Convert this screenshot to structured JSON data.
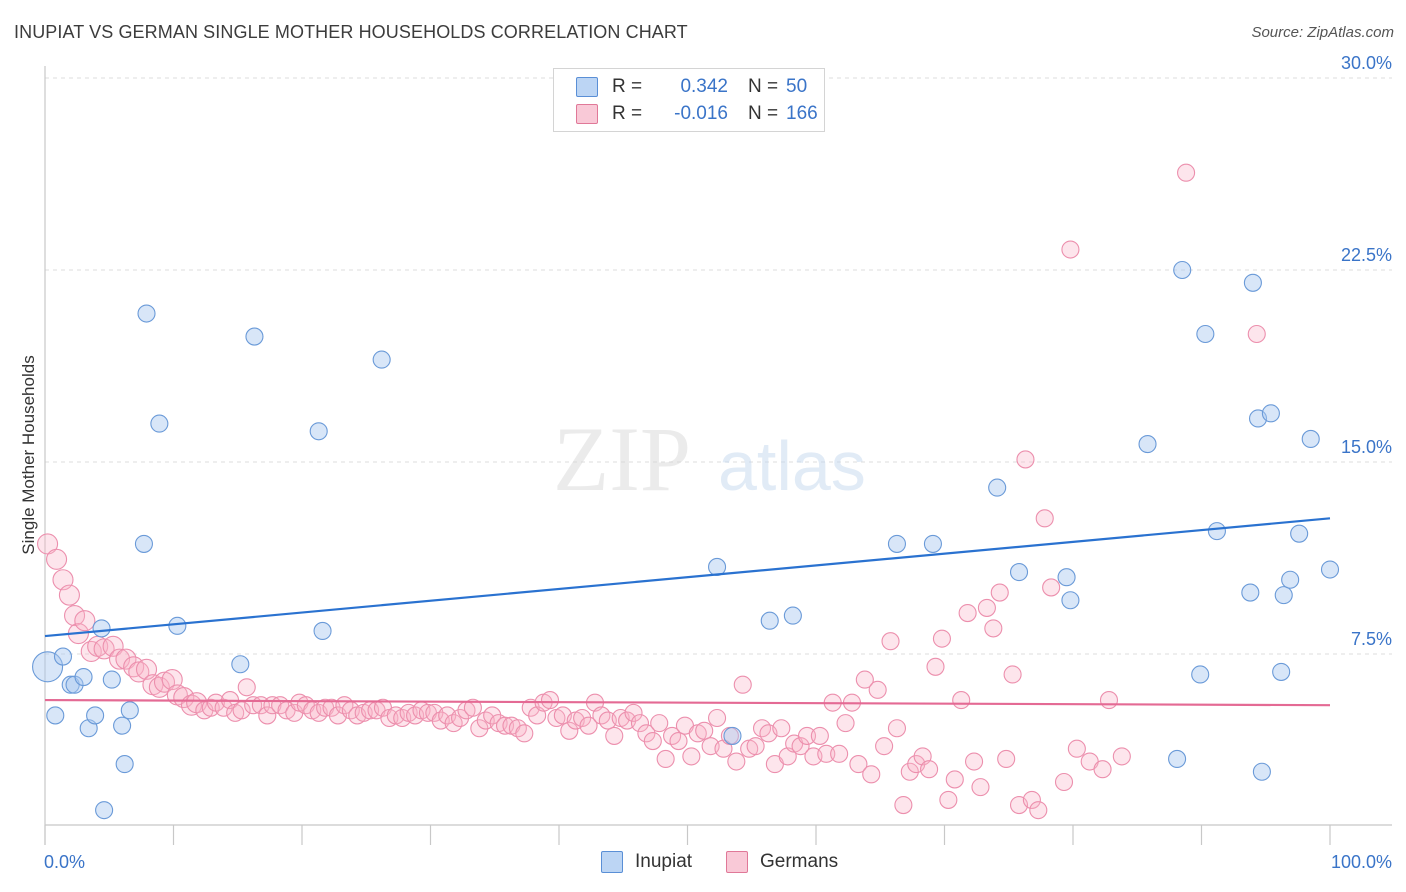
{
  "header": {
    "title": "INUPIAT VS GERMAN SINGLE MOTHER HOUSEHOLDS CORRELATION CHART",
    "source": "Source: ZipAtlas.com"
  },
  "watermark": {
    "zip": "ZIP",
    "atlas": "atlas"
  },
  "legend": {
    "rows": [
      {
        "r_label": "R =",
        "r_value": "0.342",
        "n_label": "N =",
        "n_value": "50",
        "color": "#a8c8f0",
        "border": "#5a8fd6"
      },
      {
        "r_label": "R =",
        "r_value": "-0.016",
        "n_label": "N =",
        "n_value": "166",
        "color": "#f8c0d0",
        "border": "#e07898"
      }
    ],
    "bottom": [
      {
        "label": "Inupiat",
        "color": "#a8c8f0",
        "border": "#5a8fd6"
      },
      {
        "label": "Germans",
        "color": "#f8c0d0",
        "border": "#e07898"
      }
    ]
  },
  "chart_data": {
    "type": "scatter",
    "title": "INUPIAT VS GERMAN SINGLE MOTHER HOUSEHOLDS CORRELATION CHART",
    "xlabel": "",
    "ylabel": "Single Mother Households",
    "xlim": [
      0,
      100
    ],
    "ylim": [
      0,
      31
    ],
    "x_tick_labels": [
      "0.0%",
      "100.0%"
    ],
    "y_ticks": [
      7.5,
      15.0,
      22.5,
      30.0
    ],
    "y_tick_labels": [
      "7.5%",
      "15.0%",
      "22.5%",
      "30.0%"
    ],
    "grid": true,
    "legend_position": "top-center",
    "colors": {
      "inupiat": "#4f8ad8",
      "germans": "#e87aa0",
      "axis_text": "#3a74c8"
    },
    "series": [
      {
        "name": "Inupiat",
        "trend": {
          "x": [
            0,
            100
          ],
          "y": [
            8.2,
            12.8
          ]
        },
        "points": [
          [
            0.2,
            7.0
          ],
          [
            0.8,
            5.1
          ],
          [
            1.4,
            7.4
          ],
          [
            2.0,
            6.3
          ],
          [
            2.3,
            6.3
          ],
          [
            3.0,
            6.6
          ],
          [
            3.4,
            4.6
          ],
          [
            3.9,
            5.1
          ],
          [
            4.4,
            8.5
          ],
          [
            4.6,
            1.4
          ],
          [
            5.2,
            6.5
          ],
          [
            6.0,
            4.7
          ],
          [
            6.2,
            3.2
          ],
          [
            6.6,
            5.3
          ],
          [
            7.7,
            11.8
          ],
          [
            7.9,
            20.8
          ],
          [
            8.9,
            16.5
          ],
          [
            10.3,
            8.6
          ],
          [
            15.2,
            7.1
          ],
          [
            16.3,
            19.9
          ],
          [
            21.3,
            16.2
          ],
          [
            21.6,
            8.4
          ],
          [
            26.2,
            19.0
          ],
          [
            52.3,
            10.9
          ],
          [
            53.5,
            4.3
          ],
          [
            56.4,
            8.8
          ],
          [
            58.2,
            9.0
          ],
          [
            66.3,
            11.8
          ],
          [
            69.1,
            11.8
          ],
          [
            74.1,
            14.0
          ],
          [
            75.8,
            10.7
          ],
          [
            79.5,
            10.5
          ],
          [
            79.8,
            9.6
          ],
          [
            85.8,
            15.7
          ],
          [
            88.1,
            3.4
          ],
          [
            88.5,
            22.5
          ],
          [
            89.9,
            6.7
          ],
          [
            90.3,
            20.0
          ],
          [
            91.2,
            12.3
          ],
          [
            93.8,
            9.9
          ],
          [
            94.0,
            22.0
          ],
          [
            94.4,
            16.7
          ],
          [
            94.7,
            2.9
          ],
          [
            95.4,
            16.9
          ],
          [
            96.2,
            6.8
          ],
          [
            96.4,
            9.8
          ],
          [
            96.9,
            10.4
          ],
          [
            97.6,
            12.2
          ],
          [
            98.5,
            15.9
          ],
          [
            100.0,
            10.8
          ]
        ]
      },
      {
        "name": "Germans",
        "trend": {
          "x": [
            0,
            100
          ],
          "y": [
            5.7,
            5.5
          ]
        },
        "points": [
          [
            0.2,
            11.8
          ],
          [
            0.9,
            11.2
          ],
          [
            1.4,
            10.4
          ],
          [
            1.9,
            9.8
          ],
          [
            2.3,
            9.0
          ],
          [
            2.6,
            8.3
          ],
          [
            3.1,
            8.8
          ],
          [
            3.6,
            7.6
          ],
          [
            4.1,
            7.8
          ],
          [
            4.6,
            7.7
          ],
          [
            5.3,
            7.8
          ],
          [
            5.8,
            7.3
          ],
          [
            6.3,
            7.3
          ],
          [
            6.9,
            7.0
          ],
          [
            7.3,
            6.8
          ],
          [
            7.9,
            6.9
          ],
          [
            8.4,
            6.3
          ],
          [
            8.9,
            6.2
          ],
          [
            9.3,
            6.4
          ],
          [
            9.9,
            6.5
          ],
          [
            10.3,
            5.9
          ],
          [
            10.8,
            5.8
          ],
          [
            11.4,
            5.5
          ],
          [
            11.8,
            5.6
          ],
          [
            12.4,
            5.3
          ],
          [
            12.9,
            5.4
          ],
          [
            13.3,
            5.6
          ],
          [
            13.9,
            5.4
          ],
          [
            14.4,
            5.7
          ],
          [
            14.8,
            5.2
          ],
          [
            15.3,
            5.3
          ],
          [
            15.7,
            6.2
          ],
          [
            16.2,
            5.5
          ],
          [
            16.8,
            5.5
          ],
          [
            17.3,
            5.1
          ],
          [
            17.7,
            5.5
          ],
          [
            18.3,
            5.5
          ],
          [
            18.8,
            5.3
          ],
          [
            19.4,
            5.2
          ],
          [
            19.8,
            5.6
          ],
          [
            20.3,
            5.5
          ],
          [
            20.8,
            5.3
          ],
          [
            21.3,
            5.2
          ],
          [
            21.8,
            5.4
          ],
          [
            22.3,
            5.4
          ],
          [
            22.8,
            5.1
          ],
          [
            23.3,
            5.5
          ],
          [
            23.8,
            5.3
          ],
          [
            24.3,
            5.1
          ],
          [
            24.8,
            5.2
          ],
          [
            25.3,
            5.3
          ],
          [
            25.8,
            5.3
          ],
          [
            26.3,
            5.4
          ],
          [
            26.8,
            5.0
          ],
          [
            27.3,
            5.1
          ],
          [
            27.8,
            5.0
          ],
          [
            28.3,
            5.2
          ],
          [
            28.8,
            5.1
          ],
          [
            29.3,
            5.3
          ],
          [
            29.8,
            5.2
          ],
          [
            30.3,
            5.2
          ],
          [
            30.8,
            4.9
          ],
          [
            31.3,
            5.1
          ],
          [
            31.8,
            4.8
          ],
          [
            32.3,
            5.0
          ],
          [
            32.8,
            5.3
          ],
          [
            33.3,
            5.4
          ],
          [
            33.8,
            4.6
          ],
          [
            34.3,
            4.9
          ],
          [
            34.8,
            5.1
          ],
          [
            35.3,
            4.8
          ],
          [
            35.8,
            4.7
          ],
          [
            36.3,
            4.7
          ],
          [
            36.8,
            4.6
          ],
          [
            37.3,
            4.4
          ],
          [
            37.8,
            5.4
          ],
          [
            38.3,
            5.1
          ],
          [
            38.8,
            5.6
          ],
          [
            39.3,
            5.7
          ],
          [
            39.8,
            5.0
          ],
          [
            40.3,
            5.1
          ],
          [
            40.8,
            4.5
          ],
          [
            41.3,
            4.9
          ],
          [
            41.8,
            5.0
          ],
          [
            42.3,
            4.7
          ],
          [
            42.8,
            5.6
          ],
          [
            43.3,
            5.1
          ],
          [
            43.8,
            4.9
          ],
          [
            44.3,
            4.3
          ],
          [
            44.8,
            5.0
          ],
          [
            45.3,
            4.9
          ],
          [
            45.8,
            5.2
          ],
          [
            46.3,
            4.8
          ],
          [
            46.8,
            4.4
          ],
          [
            47.3,
            4.1
          ],
          [
            47.8,
            4.8
          ],
          [
            48.3,
            3.4
          ],
          [
            48.8,
            4.3
          ],
          [
            49.3,
            4.1
          ],
          [
            49.8,
            4.7
          ],
          [
            50.3,
            3.5
          ],
          [
            50.8,
            4.4
          ],
          [
            51.3,
            4.5
          ],
          [
            51.8,
            3.9
          ],
          [
            52.3,
            5.0
          ],
          [
            52.8,
            3.8
          ],
          [
            53.3,
            4.3
          ],
          [
            53.8,
            3.3
          ],
          [
            54.3,
            6.3
          ],
          [
            54.8,
            3.8
          ],
          [
            55.3,
            3.9
          ],
          [
            55.8,
            4.6
          ],
          [
            56.3,
            4.4
          ],
          [
            56.8,
            3.2
          ],
          [
            57.3,
            4.6
          ],
          [
            57.8,
            3.5
          ],
          [
            58.3,
            4.0
          ],
          [
            58.8,
            3.9
          ],
          [
            59.3,
            4.3
          ],
          [
            59.8,
            3.5
          ],
          [
            60.3,
            4.3
          ],
          [
            60.8,
            3.6
          ],
          [
            61.3,
            5.6
          ],
          [
            61.8,
            3.6
          ],
          [
            62.3,
            4.8
          ],
          [
            62.8,
            5.6
          ],
          [
            63.3,
            3.2
          ],
          [
            63.8,
            6.5
          ],
          [
            64.3,
            2.8
          ],
          [
            64.8,
            6.1
          ],
          [
            65.3,
            3.9
          ],
          [
            65.8,
            8.0
          ],
          [
            66.3,
            4.6
          ],
          [
            66.8,
            1.6
          ],
          [
            67.3,
            2.9
          ],
          [
            67.8,
            3.2
          ],
          [
            68.3,
            3.5
          ],
          [
            68.8,
            3.0
          ],
          [
            69.3,
            7.0
          ],
          [
            69.8,
            8.1
          ],
          [
            70.3,
            1.8
          ],
          [
            70.8,
            2.6
          ],
          [
            71.3,
            5.7
          ],
          [
            71.8,
            9.1
          ],
          [
            72.3,
            3.3
          ],
          [
            72.8,
            2.3
          ],
          [
            73.3,
            9.3
          ],
          [
            73.8,
            8.5
          ],
          [
            74.3,
            9.9
          ],
          [
            74.8,
            3.4
          ],
          [
            75.3,
            6.7
          ],
          [
            75.8,
            1.6
          ],
          [
            76.3,
            15.1
          ],
          [
            76.8,
            1.8
          ],
          [
            77.3,
            1.4
          ],
          [
            77.8,
            12.8
          ],
          [
            78.3,
            10.1
          ],
          [
            79.3,
            2.5
          ],
          [
            79.8,
            23.3
          ],
          [
            80.3,
            3.8
          ],
          [
            81.3,
            3.3
          ],
          [
            82.3,
            3.0
          ],
          [
            82.8,
            5.7
          ],
          [
            83.8,
            3.5
          ],
          [
            88.8,
            26.3
          ],
          [
            94.3,
            20.0
          ]
        ]
      }
    ]
  }
}
